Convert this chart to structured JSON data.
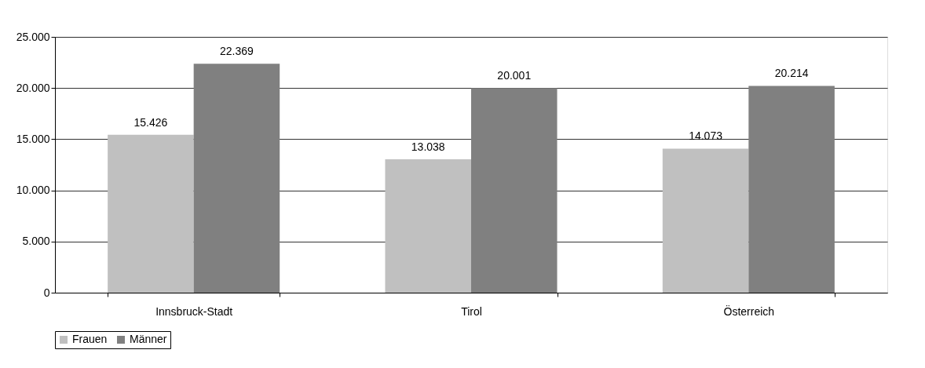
{
  "chart_data": {
    "type": "bar",
    "categories": [
      "Innsbruck-Stadt",
      "Tirol",
      "Österreich"
    ],
    "series": [
      {
        "name": "Frauen",
        "color": "#c0c0c0",
        "values": [
          15426,
          13038,
          14073
        ],
        "value_labels": [
          "15.426",
          "13.038",
          "14.073"
        ]
      },
      {
        "name": "Männer",
        "color": "#808080",
        "values": [
          22369,
          20001,
          20214
        ],
        "value_labels": [
          "22.369",
          "20.001",
          "20.214"
        ]
      }
    ],
    "ylim": [
      0,
      25000
    ],
    "yticks": [
      {
        "value": 0,
        "label": "0"
      },
      {
        "value": 5000,
        "label": "5.000"
      },
      {
        "value": 10000,
        "label": "10.000"
      },
      {
        "value": 15000,
        "label": "15.000"
      },
      {
        "value": 20000,
        "label": "20.000"
      },
      {
        "value": 25000,
        "label": "25.000"
      }
    ],
    "grid": "y",
    "legend": "bottom"
  }
}
